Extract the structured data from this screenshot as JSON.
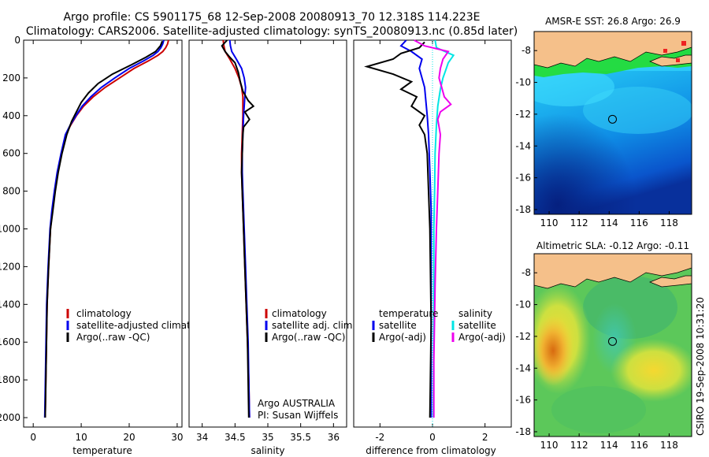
{
  "header": {
    "line1": "Argo profile: CS 5901175_68 12-Sep-2008 20080913_70 12.318S 114.223E",
    "line2": "Climatology: CARS2006. Satellite-adjusted climatology: synTS_20080913.nc (0.85d later)"
  },
  "side_label": "CSIRO 19-Sep-2008 10:31:20",
  "colors": {
    "red": "#cc0000",
    "blue": "#0000ee",
    "black": "#000000",
    "cyan": "#00e5e5",
    "magenta": "#ee00ee"
  },
  "chart_data": [
    {
      "type": "line",
      "name": "temperature-profile",
      "xlabel": "temperature",
      "xlim": [
        -2,
        31
      ],
      "ylim": [
        2050,
        0
      ],
      "xticks": [
        0,
        10,
        20,
        30
      ],
      "xtick_labels": [
        "0",
        "10",
        "20",
        "30"
      ],
      "yticks": [
        0,
        200,
        400,
        600,
        800,
        1000,
        1200,
        1400,
        1600,
        1800,
        2000
      ],
      "ytick_labels": [
        "0",
        "200",
        "400",
        "600",
        "800",
        "1000",
        "1200",
        "1400",
        "1600",
        "1800",
        "2000"
      ],
      "legend": [
        "climatology",
        "satellite-adjusted climatology",
        "Argo(..raw -QC)"
      ],
      "series": [
        {
          "name": "climatology",
          "color": "#cc0000",
          "x": [
            28.2,
            28.0,
            27.6,
            27.0,
            26.0,
            24.0,
            21.0,
            18.0,
            15.0,
            12.5,
            10.5,
            9.0,
            7.8,
            6.8,
            5.9,
            5.1,
            4.5,
            4.0,
            3.6,
            3.2,
            2.9,
            2.7,
            2.5
          ],
          "y": [
            0,
            20,
            40,
            60,
            80,
            110,
            150,
            200,
            250,
            300,
            350,
            400,
            450,
            500,
            600,
            700,
            800,
            900,
            1000,
            1200,
            1400,
            1700,
            2000
          ]
        },
        {
          "name": "satellite-adjusted climatology",
          "color": "#0000ee",
          "x": [
            27.2,
            27.0,
            26.6,
            26.0,
            25.0,
            23.0,
            20.0,
            17.0,
            14.2,
            12.0,
            10.2,
            8.9,
            7.7,
            6.7,
            5.8,
            5.0,
            4.4,
            3.9,
            3.5,
            3.1,
            2.8,
            2.6,
            2.4
          ],
          "y": [
            0,
            20,
            40,
            60,
            80,
            110,
            150,
            200,
            250,
            300,
            350,
            400,
            450,
            500,
            600,
            700,
            800,
            900,
            1000,
            1200,
            1400,
            1700,
            2000
          ]
        },
        {
          "name": "Argo(..raw -QC)",
          "color": "#000000",
          "x": [
            26.9,
            26.5,
            25.5,
            23.5,
            20.5,
            16.5,
            13.5,
            11.5,
            10.0,
            9.0,
            8.0,
            7.0,
            6.0,
            5.2,
            4.6,
            4.1,
            3.6,
            3.2,
            2.9,
            2.7,
            2.5
          ],
          "y": [
            5,
            30,
            60,
            90,
            130,
            180,
            230,
            280,
            330,
            380,
            430,
            500,
            600,
            700,
            800,
            900,
            1000,
            1200,
            1400,
            1700,
            2000
          ]
        }
      ]
    },
    {
      "type": "line",
      "name": "salinity-profile",
      "xlabel": "salinity",
      "xlim": [
        33.8,
        36.2
      ],
      "ylim": [
        2050,
        0
      ],
      "xticks": [
        34,
        34.5,
        35,
        35.5,
        36
      ],
      "xtick_labels": [
        "34",
        "34.5",
        "35",
        "35.5",
        "36"
      ],
      "yticks": [],
      "legend": [
        "climatology",
        "satellite adj. clim.",
        "Argo(..raw -QC)"
      ],
      "annotations": [
        "Argo AUSTRALIA",
        "PI: Susan Wijffels"
      ],
      "series": [
        {
          "name": "climatology",
          "color": "#cc0000",
          "x": [
            34.32,
            34.33,
            34.35,
            34.42,
            34.5,
            34.56,
            34.6,
            34.62,
            34.62,
            34.61,
            34.6,
            34.6,
            34.61,
            34.63,
            34.65,
            34.67,
            34.69,
            34.71,
            34.72
          ],
          "y": [
            0,
            30,
            60,
            100,
            150,
            200,
            250,
            300,
            400,
            500,
            600,
            700,
            800,
            1000,
            1200,
            1400,
            1600,
            1800,
            2000
          ]
        },
        {
          "name": "satellite adj. clim.",
          "color": "#0000ee",
          "x": [
            34.42,
            34.43,
            34.45,
            34.52,
            34.6,
            34.64,
            34.66,
            34.65,
            34.63,
            34.62,
            34.61,
            34.61,
            34.62,
            34.64,
            34.66,
            34.68,
            34.7,
            34.71,
            34.72
          ],
          "y": [
            0,
            30,
            60,
            100,
            150,
            200,
            250,
            300,
            400,
            500,
            600,
            700,
            800,
            1000,
            1200,
            1400,
            1600,
            1800,
            2000
          ]
        },
        {
          "name": "Argo(..raw -QC)",
          "color": "#000000",
          "x": [
            34.38,
            34.3,
            34.35,
            34.42,
            34.5,
            34.55,
            34.58,
            34.62,
            34.7,
            34.78,
            34.65,
            34.72,
            34.63,
            34.62,
            34.61,
            34.6,
            34.61,
            34.63,
            34.65,
            34.67,
            34.69,
            34.7,
            34.71
          ],
          "y": [
            0,
            30,
            60,
            90,
            120,
            170,
            220,
            270,
            320,
            350,
            380,
            420,
            460,
            500,
            600,
            700,
            800,
            1000,
            1200,
            1400,
            1600,
            1800,
            2000
          ]
        }
      ]
    },
    {
      "type": "line",
      "name": "difference-profile",
      "xlabel": "difference from climatology",
      "xlim": [
        -3,
        3
      ],
      "ylim": [
        2050,
        0
      ],
      "xticks": [
        -2,
        0,
        2
      ],
      "xtick_labels": [
        "-2",
        "0",
        "2"
      ],
      "yticks": [],
      "legend_temperature": {
        "title": "temperature",
        "items": [
          "satellite",
          "Argo(-adj)"
        ]
      },
      "legend_salinity": {
        "title": "salinity",
        "items": [
          "satellite",
          "Argo(-adj)"
        ]
      },
      "series": [
        {
          "name": "temperature satellite",
          "color": "#0000ee",
          "x": [
            -1.0,
            -1.2,
            -0.8,
            -0.4,
            -0.5,
            -0.3,
            -0.2,
            -0.15,
            -0.1,
            -0.05,
            -0.05,
            -0.05,
            -0.05,
            -0.05
          ],
          "y": [
            0,
            30,
            60,
            100,
            150,
            250,
            400,
            500,
            700,
            900,
            1200,
            1500,
            1800,
            2000
          ]
        },
        {
          "name": "temperature Argo(-adj)",
          "color": "#000000",
          "x": [
            -0.3,
            -0.5,
            -1.2,
            -1.5,
            -2.5,
            -1.5,
            -0.8,
            -1.2,
            -0.6,
            -0.8,
            -0.3,
            -0.5,
            -0.3,
            -0.2,
            -0.15,
            -0.1,
            -0.05,
            -0.1
          ],
          "y": [
            10,
            40,
            70,
            100,
            140,
            180,
            220,
            260,
            300,
            350,
            400,
            450,
            500,
            600,
            800,
            1000,
            1500,
            2000
          ]
        },
        {
          "name": "salinity satellite",
          "color": "#00e5e5",
          "x": [
            0.1,
            0.15,
            0.8,
            0.6,
            0.5,
            0.4,
            0.3,
            0.2,
            0.15,
            0.1,
            0.08,
            0.05,
            0.05,
            0.04,
            0.03
          ],
          "y": [
            0,
            40,
            80,
            120,
            160,
            200,
            260,
            350,
            450,
            600,
            800,
            1000,
            1400,
            1800,
            2000
          ]
        },
        {
          "name": "salinity Argo(-adj)",
          "color": "#ee00ee",
          "x": [
            -0.7,
            -0.3,
            0.6,
            0.4,
            0.3,
            0.25,
            0.35,
            0.45,
            0.7,
            0.3,
            0.2,
            0.3,
            0.25,
            0.2,
            0.15,
            0.1,
            0.05,
            0.05
          ],
          "y": [
            0,
            30,
            60,
            100,
            150,
            200,
            250,
            300,
            340,
            380,
            420,
            500,
            600,
            800,
            1000,
            1300,
            1700,
            2000
          ]
        }
      ]
    },
    {
      "type": "heatmap",
      "name": "sst-map",
      "title": "AMSR-E SST: 26.8 Argo: 26.9",
      "xlim": [
        109,
        119.5
      ],
      "ylim": [
        -18.3,
        -6.8
      ],
      "xticks": [
        110,
        112,
        114,
        116,
        118
      ],
      "xtick_labels": [
        "110",
        "112",
        "114",
        "116",
        "118"
      ],
      "yticks": [
        -8,
        -10,
        -12,
        -14,
        -16,
        -18
      ],
      "ytick_labels": [
        "-8",
        "-10",
        "-12",
        "-14",
        "-16",
        "-18"
      ],
      "argo_position": {
        "lon": 114.223,
        "lat": -12.318
      }
    },
    {
      "type": "heatmap",
      "name": "sla-map",
      "title": "Altimetric SLA: -0.12 Argo: -0.11",
      "xlim": [
        109,
        119.5
      ],
      "ylim": [
        -18.3,
        -6.8
      ],
      "xticks": [
        110,
        112,
        114,
        116,
        118
      ],
      "xtick_labels": [
        "110",
        "112",
        "114",
        "116",
        "118"
      ],
      "yticks": [
        -8,
        -10,
        -12,
        -14,
        -16,
        -18
      ],
      "ytick_labels": [
        "-8",
        "-10",
        "-12",
        "-14",
        "-16",
        "-18"
      ],
      "argo_position": {
        "lon": 114.223,
        "lat": -12.318
      }
    }
  ]
}
